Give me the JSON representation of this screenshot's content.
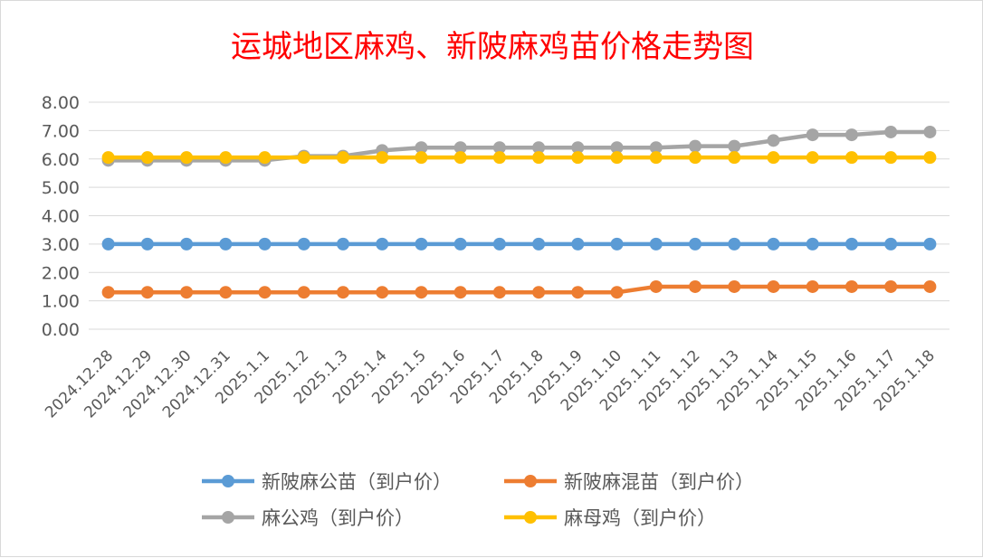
{
  "chart_data": {
    "type": "line",
    "title": "运城地区麻鸡、新陂麻鸡苗价格走势图",
    "xlabel": "",
    "ylabel": "",
    "ylim": [
      0,
      8
    ],
    "y_ticks": [
      "0.00",
      "1.00",
      "2.00",
      "3.00",
      "4.00",
      "5.00",
      "6.00",
      "7.00",
      "8.00"
    ],
    "grid": true,
    "legend_position": "bottom",
    "categories": [
      "2024.12.28",
      "2024.12.29",
      "2024.12.30",
      "2024.12.31",
      "2025.1.1",
      "2025.1.2",
      "2025.1.3",
      "2025.1.4",
      "2025.1.5",
      "2025.1.6",
      "2025.1.7",
      "2025.1.8",
      "2025.1.9",
      "2025.1.10",
      "2025.1.11",
      "2025.1.12",
      "2025.1.13",
      "2025.1.14",
      "2025.1.15",
      "2025.1.16",
      "2025.1.17",
      "2025.1.18"
    ],
    "series": [
      {
        "name": "新陂麻公苗（到户价）",
        "color": "#5b9bd5",
        "values": [
          3.0,
          3.0,
          3.0,
          3.0,
          3.0,
          3.0,
          3.0,
          3.0,
          3.0,
          3.0,
          3.0,
          3.0,
          3.0,
          3.0,
          3.0,
          3.0,
          3.0,
          3.0,
          3.0,
          3.0,
          3.0,
          3.0
        ]
      },
      {
        "name": "新陂麻混苗（到户价）",
        "color": "#ed7d31",
        "values": [
          1.3,
          1.3,
          1.3,
          1.3,
          1.3,
          1.3,
          1.3,
          1.3,
          1.3,
          1.3,
          1.3,
          1.3,
          1.3,
          1.3,
          1.5,
          1.5,
          1.5,
          1.5,
          1.5,
          1.5,
          1.5,
          1.5
        ]
      },
      {
        "name": "麻公鸡（到户价）",
        "color": "#a5a5a5",
        "values": [
          5.95,
          5.95,
          5.95,
          5.95,
          5.95,
          6.1,
          6.1,
          6.3,
          6.4,
          6.4,
          6.4,
          6.4,
          6.4,
          6.4,
          6.4,
          6.45,
          6.45,
          6.65,
          6.85,
          6.85,
          6.95,
          6.95
        ]
      },
      {
        "name": "麻母鸡（到户价）",
        "color": "#ffc000",
        "values": [
          6.05,
          6.05,
          6.05,
          6.05,
          6.05,
          6.05,
          6.05,
          6.05,
          6.05,
          6.05,
          6.05,
          6.05,
          6.05,
          6.05,
          6.05,
          6.05,
          6.05,
          6.05,
          6.05,
          6.05,
          6.05,
          6.05
        ]
      }
    ]
  }
}
